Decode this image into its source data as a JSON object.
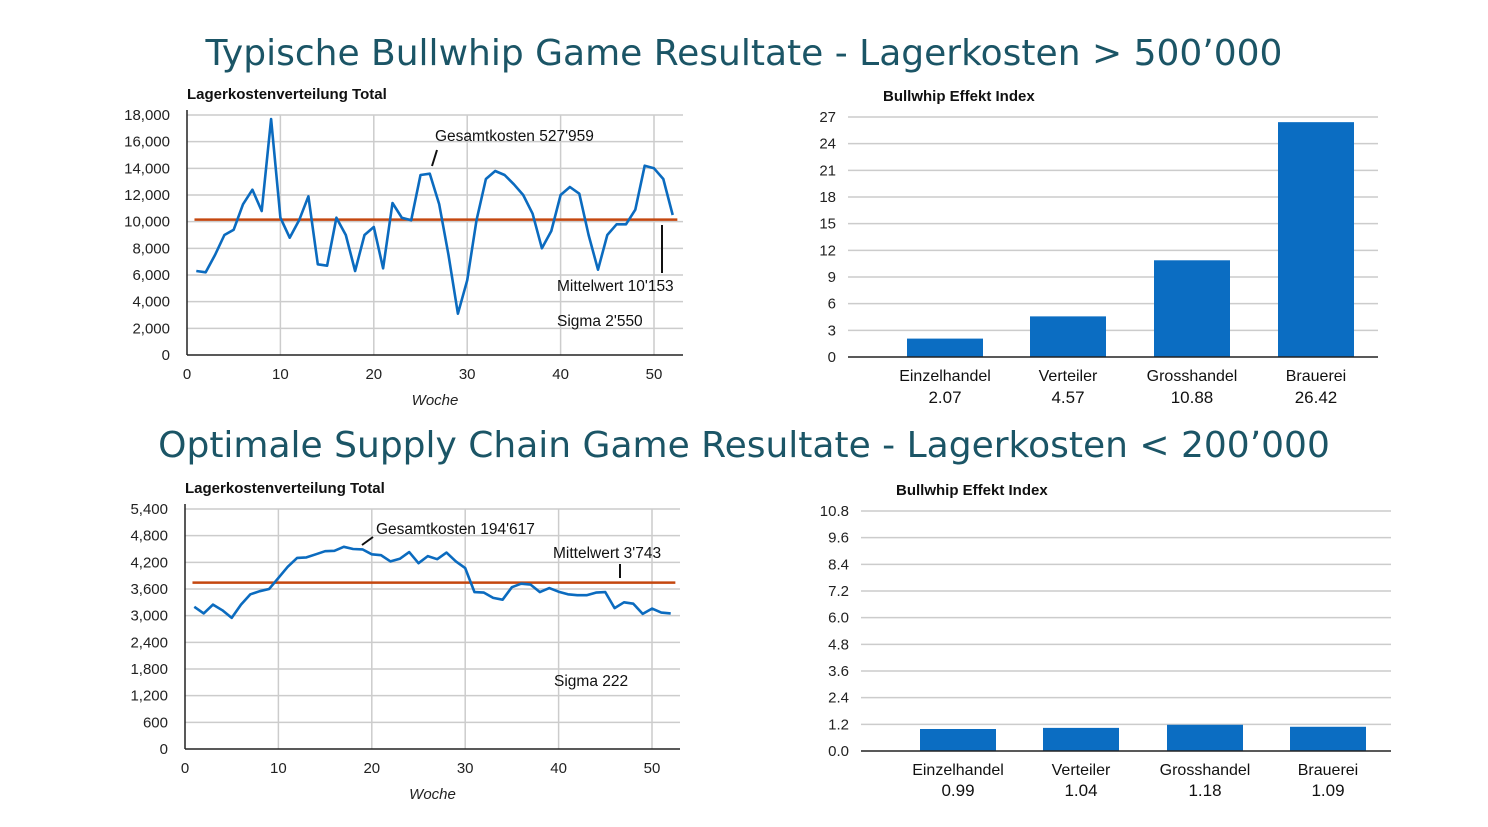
{
  "colors": {
    "title": "#1b5566",
    "line": "#0b6bbf",
    "mean": "#c4470f",
    "bar": "#0b6dc2",
    "grid": "#cccccc"
  },
  "chart_data": [
    {
      "id": "top-line",
      "type": "line",
      "section_title": "Typische Bullwhip Game Resultate - Lagerkosten > 500’000",
      "title": "Lagerkostenverteilung Total",
      "xlabel": "Woche",
      "ylabel": "",
      "xlim": [
        0,
        53
      ],
      "ylim": [
        0,
        18000
      ],
      "xticks": [
        0,
        10,
        20,
        30,
        40,
        50
      ],
      "yticks": [
        0,
        2000,
        4000,
        6000,
        8000,
        10000,
        12000,
        14000,
        16000,
        18000
      ],
      "ytick_labels": [
        "0",
        "2,000",
        "4,000",
        "6,000",
        "8,000",
        "10,000",
        "12,000",
        "14,000",
        "16,000",
        "18,000"
      ],
      "grid": true,
      "series": [
        {
          "name": "Lagerkosten",
          "x": [
            1,
            2,
            3,
            4,
            5,
            6,
            7,
            8,
            9,
            10,
            11,
            12,
            13,
            14,
            15,
            16,
            17,
            18,
            19,
            20,
            21,
            22,
            23,
            24,
            25,
            26,
            27,
            28,
            29,
            30,
            31,
            32,
            33,
            34,
            35,
            36,
            37,
            38,
            39,
            40,
            41,
            42,
            43,
            44,
            45,
            46,
            47,
            48,
            49,
            50,
            51,
            52
          ],
          "values": [
            6300,
            6200,
            7500,
            9000,
            9400,
            11300,
            12400,
            10800,
            17700,
            10300,
            8800,
            10100,
            11900,
            6800,
            6700,
            10300,
            9000,
            6300,
            9000,
            9600,
            6500,
            11400,
            10300,
            10100,
            13500,
            13600,
            11300,
            7500,
            3100,
            5600,
            10100,
            13200,
            13800,
            13500,
            12800,
            12000,
            10600,
            8000,
            9300,
            12000,
            12600,
            12100,
            9000,
            6400,
            9000,
            9800,
            9800,
            10900,
            14200,
            14000,
            13200,
            10500
          ]
        },
        {
          "name": "Mittelwert",
          "value": 10153
        }
      ],
      "annotations": {
        "total": "Gesamtkosten 527'959",
        "mean": "Mittelwert 10'153",
        "sigma": "Sigma 2'550"
      }
    },
    {
      "id": "top-bar",
      "type": "bar",
      "title": "Bullwhip Effekt Index",
      "categories": [
        "Einzelhandel",
        "Verteiler",
        "Grosshandel",
        "Brauerei"
      ],
      "values": [
        2.07,
        4.57,
        10.88,
        26.42
      ],
      "value_labels": [
        "2.07",
        "4.57",
        "10.88",
        "26.42"
      ],
      "ylim": [
        0,
        27
      ],
      "yticks": [
        0,
        3,
        6,
        9,
        12,
        15,
        18,
        21,
        24,
        27
      ],
      "ytick_labels": [
        "0",
        "3",
        "6",
        "9",
        "12",
        "15",
        "18",
        "21",
        "24",
        "27"
      ],
      "grid": true
    },
    {
      "id": "bottom-line",
      "type": "line",
      "section_title": "Optimale Supply Chain Game Resultate - Lagerkosten < 200’000",
      "title": "Lagerkostenverteilung Total",
      "xlabel": "Woche",
      "ylabel": "",
      "xlim": [
        0,
        53
      ],
      "ylim": [
        0,
        5400
      ],
      "xticks": [
        0,
        10,
        20,
        30,
        40,
        50
      ],
      "yticks": [
        0,
        600,
        1200,
        1800,
        2400,
        3000,
        3600,
        4200,
        4800,
        5400
      ],
      "ytick_labels": [
        "0",
        "600",
        "1,200",
        "1,800",
        "2,400",
        "3,000",
        "3,600",
        "4,200",
        "4,800",
        "5,400"
      ],
      "grid": true,
      "series": [
        {
          "name": "Lagerkosten",
          "x": [
            1,
            2,
            3,
            4,
            5,
            6,
            7,
            8,
            9,
            10,
            11,
            12,
            13,
            14,
            15,
            16,
            17,
            18,
            19,
            20,
            21,
            22,
            23,
            24,
            25,
            26,
            27,
            28,
            29,
            30,
            31,
            32,
            33,
            34,
            35,
            36,
            37,
            38,
            39,
            40,
            41,
            42,
            43,
            44,
            45,
            46,
            47,
            48,
            49,
            50,
            51,
            52
          ],
          "values": [
            3200,
            3050,
            3250,
            3120,
            2950,
            3250,
            3480,
            3550,
            3600,
            3850,
            4100,
            4300,
            4310,
            4380,
            4450,
            4460,
            4550,
            4500,
            4490,
            4380,
            4360,
            4220,
            4280,
            4430,
            4180,
            4340,
            4270,
            4420,
            4220,
            4070,
            3530,
            3520,
            3400,
            3360,
            3640,
            3720,
            3700,
            3530,
            3620,
            3540,
            3480,
            3460,
            3460,
            3520,
            3530,
            3170,
            3300,
            3270,
            3040,
            3160,
            3070,
            3050
          ]
        },
        {
          "name": "Mittelwert",
          "value": 3743
        }
      ],
      "annotations": {
        "total": "Gesamtkosten 194'617",
        "mean": "Mittelwert 3'743",
        "sigma": "Sigma 222"
      }
    },
    {
      "id": "bottom-bar",
      "type": "bar",
      "title": "Bullwhip Effekt Index",
      "categories": [
        "Einzelhandel",
        "Verteiler",
        "Grosshandel",
        "Brauerei"
      ],
      "values": [
        0.99,
        1.04,
        1.18,
        1.09
      ],
      "value_labels": [
        "0.99",
        "1.04",
        "1.18",
        "1.09"
      ],
      "ylim": [
        0,
        10.8
      ],
      "yticks": [
        0,
        1.2,
        2.4,
        3.6,
        4.8,
        6.0,
        7.2,
        8.4,
        9.6,
        10.8
      ],
      "ytick_labels": [
        "0.0",
        "1.2",
        "2.4",
        "3.6",
        "4.8",
        "6.0",
        "7.2",
        "8.4",
        "9.6",
        "10.8"
      ],
      "grid": true
    }
  ]
}
